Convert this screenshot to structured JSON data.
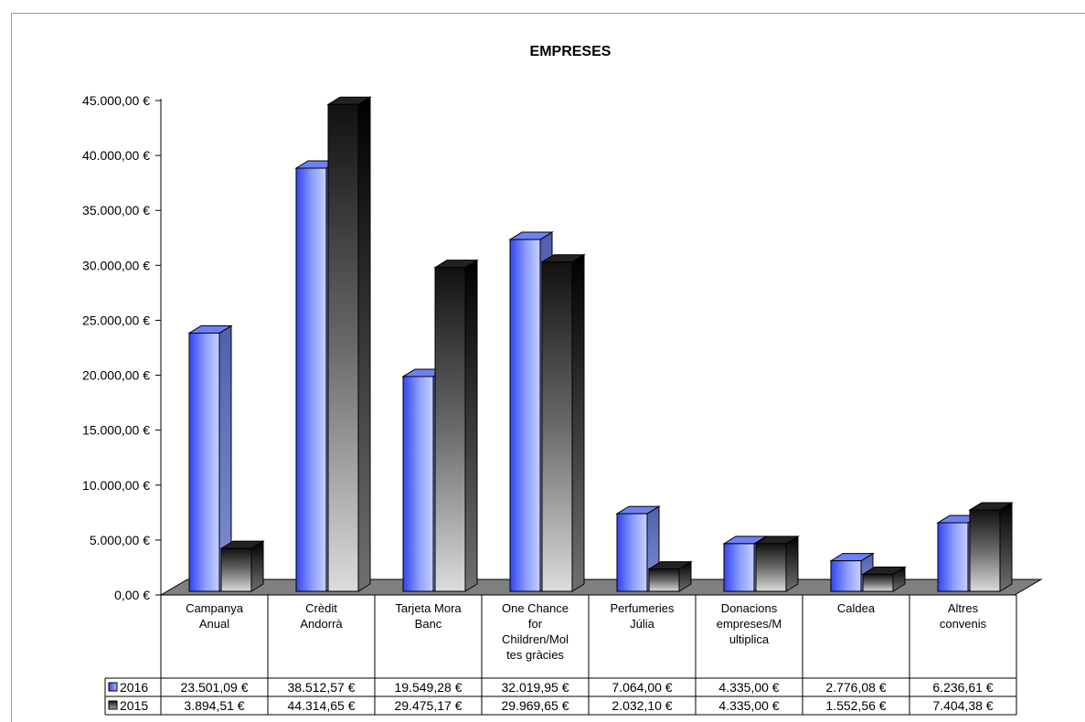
{
  "chart_data": {
    "type": "bar",
    "title": "EMPRESES",
    "xlabel": "",
    "ylabel": "",
    "ylim": [
      0,
      45000
    ],
    "yticks": [
      "0,00 €",
      "5.000,00 €",
      "10.000,00 €",
      "15.000,00 €",
      "20.000,00 €",
      "25.000,00 €",
      "30.000,00 €",
      "35.000,00 €",
      "40.000,00 €",
      "45.000,00 €"
    ],
    "ytick_values": [
      0,
      5000,
      10000,
      15000,
      20000,
      25000,
      30000,
      35000,
      40000,
      45000
    ],
    "categories": [
      [
        "Campanya",
        "Anual"
      ],
      [
        "Crèdit",
        "Andorrà"
      ],
      [
        "Tarjeta Mora",
        "Banc"
      ],
      [
        "One Chance",
        "for",
        "Children/Mol",
        "tes gràcies"
      ],
      [
        "Perfumeries",
        "Júlia"
      ],
      [
        "Donacions",
        "empreses/M",
        "ultiplica"
      ],
      [
        "Caldea"
      ],
      [
        "Altres",
        "convenis"
      ]
    ],
    "series": [
      {
        "name": "2016",
        "color": "#4a5cf0",
        "values": [
          23501.09,
          38512.57,
          19549.28,
          32019.95,
          7064.0,
          4335.0,
          2776.08,
          6236.61
        ],
        "labels": [
          "23.501,09 €",
          "38.512,57 €",
          "19.549,28 €",
          "32.019,95 €",
          "7.064,00 €",
          "4.335,00 €",
          "2.776,08 €",
          "6.236,61 €"
        ]
      },
      {
        "name": "2015",
        "color": "#1a1a1a",
        "values": [
          3894.51,
          44314.65,
          29475.17,
          29969.65,
          2032.1,
          4335.0,
          1552.56,
          7404.38
        ],
        "labels": [
          "3.894,51 €",
          "44.314,65 €",
          "29.475,17 €",
          "29.969,65 €",
          "2.032,10 €",
          "4.335,00 €",
          "1.552,56 €",
          "7.404,38 €"
        ]
      }
    ],
    "legend": "data-table",
    "grid": false
  }
}
